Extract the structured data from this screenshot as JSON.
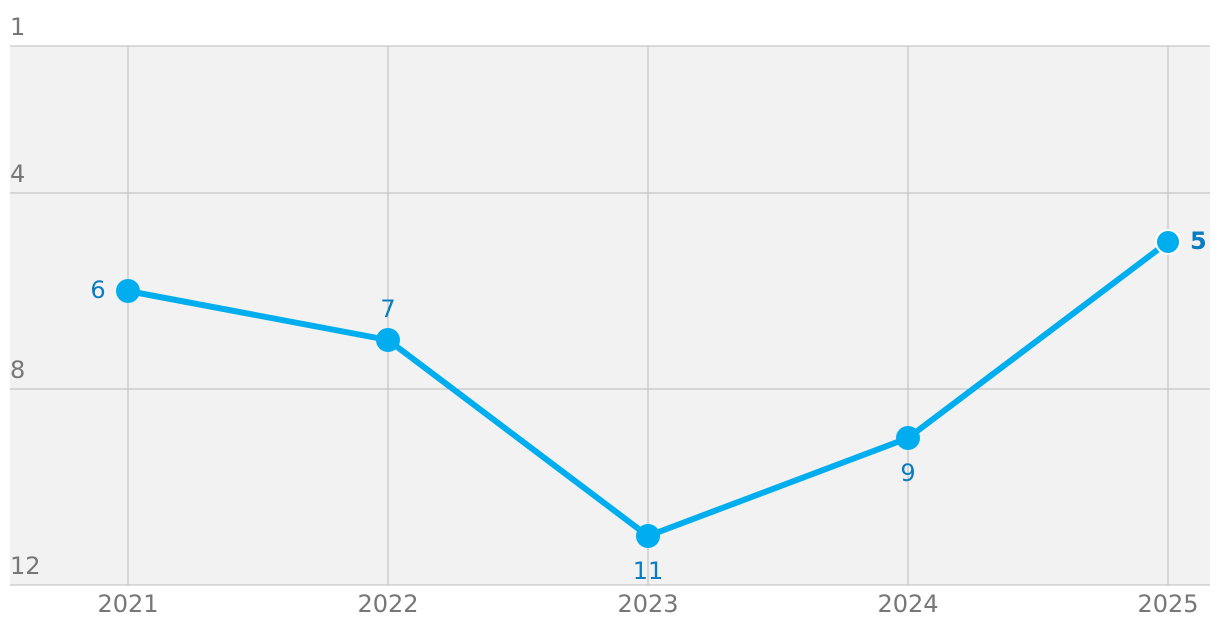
{
  "chart_data": {
    "type": "line",
    "categories": [
      "2021",
      "2022",
      "2023",
      "2024",
      "2025"
    ],
    "values": [
      6,
      7,
      11,
      9,
      5
    ],
    "color": "#00aeef",
    "ylim": [
      1,
      12
    ],
    "invert_y": true,
    "yticks": [
      1,
      4,
      8,
      12
    ],
    "grid": true
  }
}
